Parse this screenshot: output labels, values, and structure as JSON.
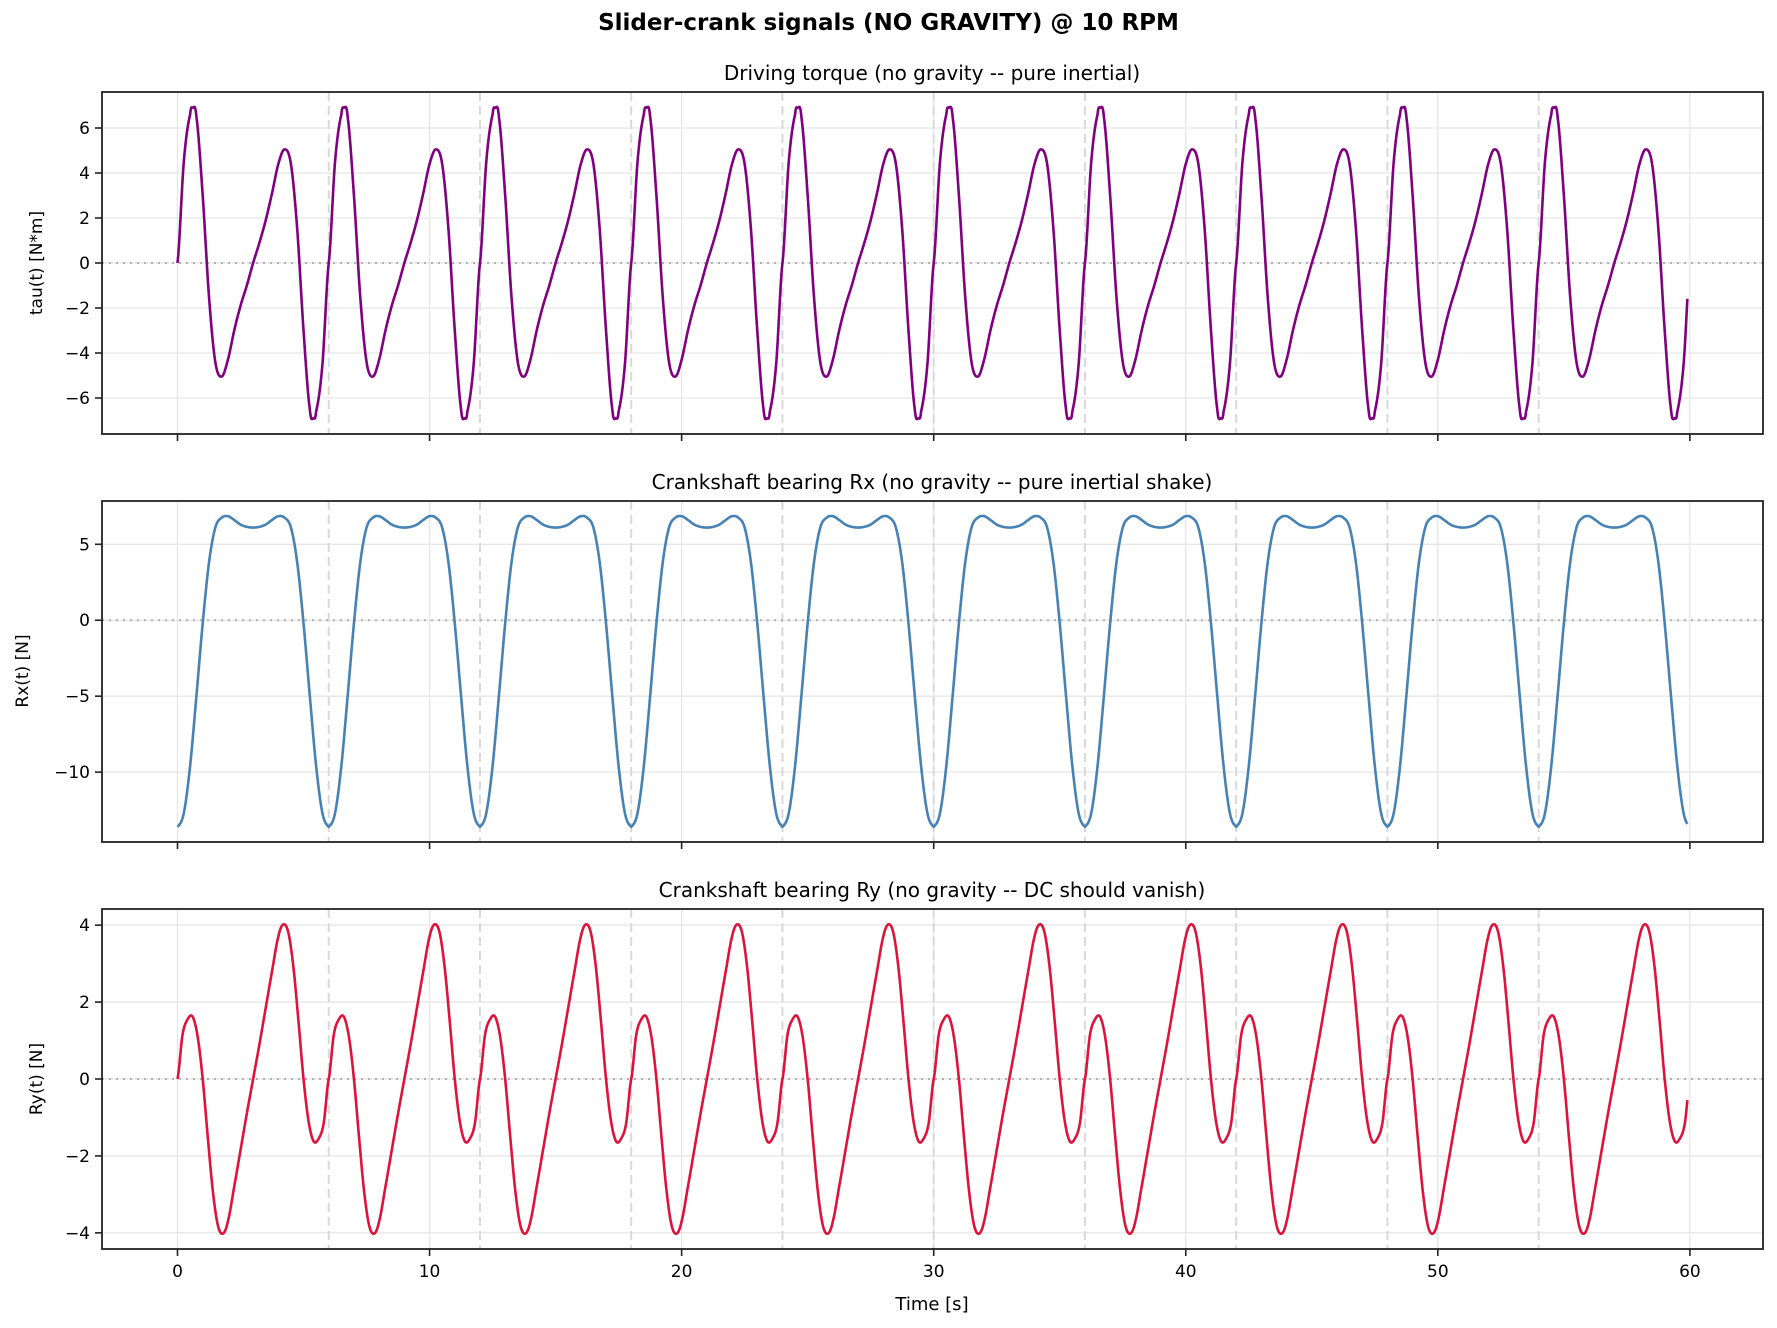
{
  "figure": {
    "suptitle": "Slider-crank signals (NO GRAVITY) @ 10 RPM",
    "xlabel": "Time [s]",
    "x_ticks": [
      0,
      10,
      20,
      30,
      40,
      50,
      60
    ],
    "x_tick_labels": [
      "0",
      "10",
      "20",
      "30",
      "40",
      "50",
      "60"
    ],
    "xlim": [
      -2.995,
      62.9
    ],
    "period_markers": [
      6,
      12,
      18,
      24,
      30,
      36,
      42,
      48,
      54
    ]
  },
  "chart_data": [
    {
      "type": "line",
      "title": "Driving torque (no gravity -- pure inertial)",
      "xlabel": "",
      "ylabel": "tau(t) [N*m]",
      "ylim": [
        -7.6,
        7.6
      ],
      "y_ticks": [
        -6,
        -4,
        -2,
        0,
        2,
        4,
        6
      ],
      "y_tick_labels": [
        "−6",
        "−4",
        "−2",
        "0",
        "2",
        "4",
        "6"
      ],
      "color": "#800080",
      "grid": true,
      "t_end": 59.9,
      "period": 6,
      "cycles": 10,
      "one_period": {
        "t": [
          0,
          0.25,
          0.5,
          0.6,
          0.75,
          1.0,
          1.25,
          1.5,
          1.75,
          2.0,
          2.25,
          2.5,
          2.75,
          3.0,
          3.25,
          3.5,
          3.75,
          4.0,
          4.25,
          4.5,
          4.75,
          5.0,
          5.25,
          5.4,
          5.5,
          5.75,
          6.0
        ],
        "y": [
          0,
          4.5,
          6.6,
          6.9,
          6.5,
          3.0,
          -1.5,
          -4.4,
          -5.05,
          -4.3,
          -3.0,
          -1.9,
          -1.0,
          0.0,
          0.9,
          1.9,
          3.1,
          4.4,
          5.05,
          4.4,
          1.5,
          -3.0,
          -6.5,
          -6.9,
          -6.6,
          -4.5,
          0
        ]
      },
      "summary": {
        "max": 6.9,
        "min": -6.9,
        "secondary_max": 5.05,
        "secondary_min": -5.05,
        "end_value": -1.1
      }
    },
    {
      "type": "line",
      "title": "Crankshaft bearing Rx (no gravity -- pure inertial shake)",
      "xlabel": "",
      "ylabel": "Rx(t) [N]",
      "ylim": [
        -14.6,
        7.85
      ],
      "y_ticks": [
        -10,
        -5,
        0,
        5
      ],
      "y_tick_labels": [
        "−10",
        "−5",
        "0",
        "5"
      ],
      "color": "#4682b4",
      "grid": true,
      "t_end": 59.9,
      "period": 6,
      "cycles": 10,
      "one_period": {
        "t": [
          0,
          0.25,
          0.5,
          0.75,
          1.0,
          1.25,
          1.5,
          1.75,
          2.0,
          2.25,
          2.5,
          2.75,
          3.0,
          3.25,
          3.5,
          3.75,
          4.0,
          4.25,
          4.5,
          4.75,
          5.0,
          5.25,
          5.5,
          5.75,
          6.0
        ],
        "y": [
          -13.6,
          -12.7,
          -9.6,
          -5.0,
          -0.2,
          3.8,
          6.1,
          6.75,
          6.85,
          6.6,
          6.3,
          6.15,
          6.1,
          6.15,
          6.3,
          6.6,
          6.85,
          6.75,
          6.1,
          3.8,
          -0.2,
          -5.0,
          -9.6,
          -12.7,
          -13.6
        ]
      },
      "summary": {
        "max": 6.85,
        "min": -13.6,
        "plateau_dip": 6.1
      }
    },
    {
      "type": "line",
      "title": "Crankshaft bearing Ry (no gravity -- DC should vanish)",
      "xlabel": "Time [s]",
      "ylabel": "Ry(t) [N]",
      "ylim": [
        -4.42,
        4.42
      ],
      "y_ticks": [
        -4,
        -2,
        0,
        2,
        4
      ],
      "y_tick_labels": [
        "−4",
        "−2",
        "0",
        "2",
        "4"
      ],
      "color": "#dc143c",
      "grid": true,
      "t_end": 59.9,
      "period": 6,
      "cycles": 10,
      "one_period": {
        "t": [
          0,
          0.2,
          0.4,
          0.6,
          0.8,
          1.0,
          1.2,
          1.4,
          1.6,
          1.8,
          2.0,
          2.25,
          2.5,
          2.75,
          3.0,
          3.25,
          3.5,
          3.75,
          4.0,
          4.2,
          4.4,
          4.6,
          4.8,
          5.0,
          5.2,
          5.4,
          5.6,
          5.8,
          6.0
        ],
        "y": [
          0,
          1.15,
          1.55,
          1.62,
          1.1,
          0.0,
          -1.5,
          -2.9,
          -3.8,
          -4.02,
          -3.7,
          -2.8,
          -1.85,
          -0.9,
          0.0,
          0.9,
          1.85,
          2.8,
          3.7,
          4.02,
          3.8,
          2.9,
          1.5,
          0.0,
          -1.1,
          -1.62,
          -1.55,
          -1.15,
          0
        ]
      },
      "summary": {
        "max": 4.02,
        "min": -4.02,
        "secondary_max": 1.62,
        "secondary_min": -1.62,
        "end_value": -0.2
      }
    }
  ],
  "colors": {
    "axes_edge": "#222222",
    "grid": "#e6e6e6",
    "zero_line": "#b0b0b0",
    "period_marker": "#d9d9d9"
  }
}
